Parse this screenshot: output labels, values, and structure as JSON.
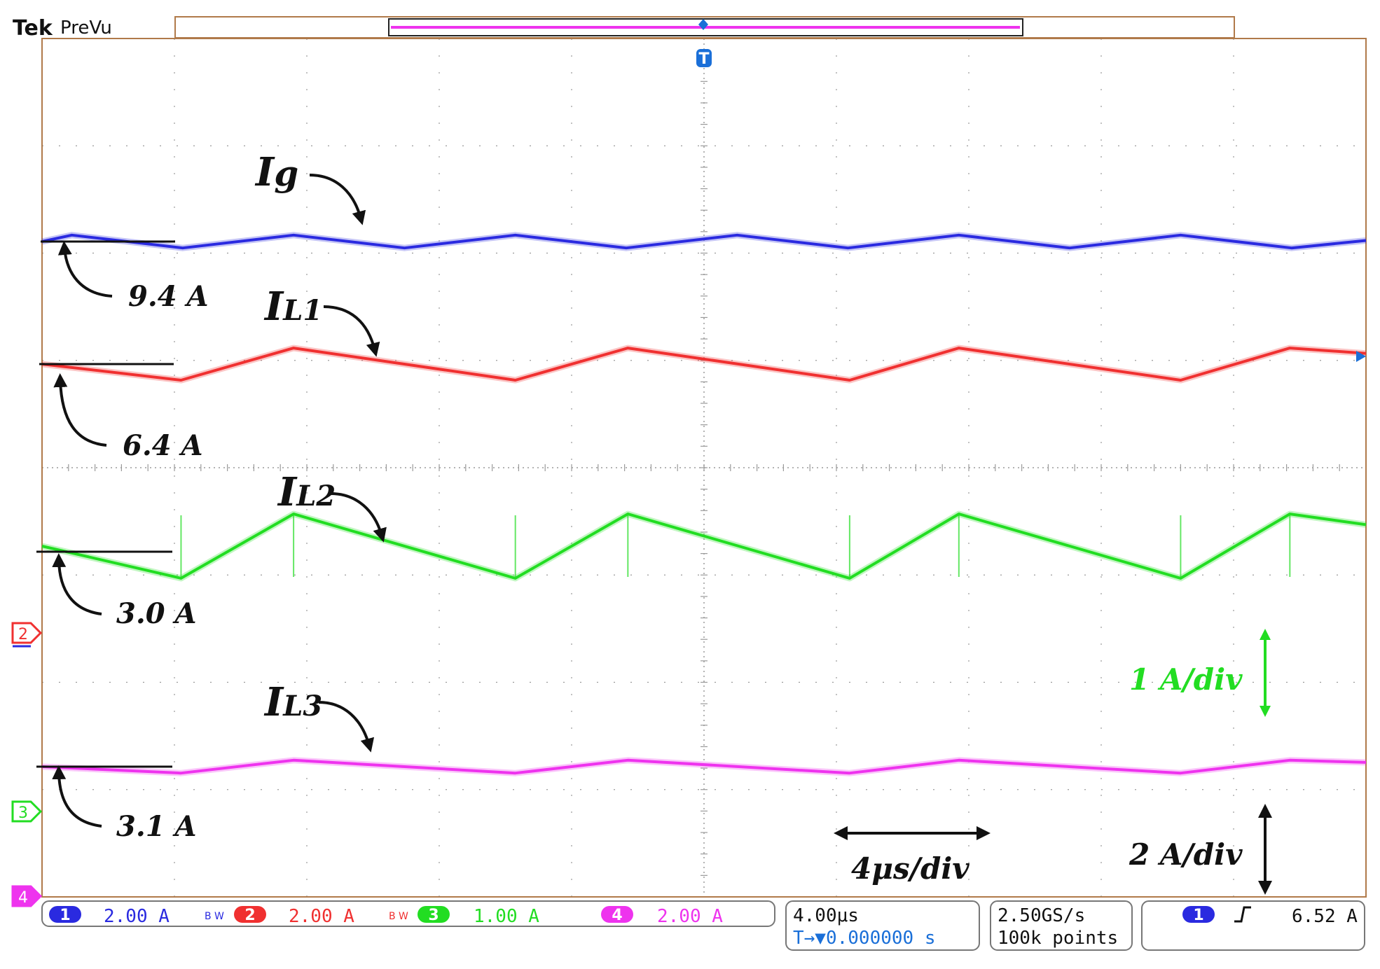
{
  "header": {
    "brand": "Tek",
    "mode": "PreVu"
  },
  "colors": {
    "ch1": "#2a2ae0",
    "ch2": "#f03030",
    "ch3": "#22dd22",
    "ch4": "#ee33ee",
    "grid": "#9a9a9a",
    "frame": "#b07a4a",
    "trigger": "#1a6fd8"
  },
  "chart_data": {
    "type": "line",
    "title": "",
    "x_unit": "us",
    "x_per_div": 4,
    "xlim": [
      -20,
      20
    ],
    "divisions": {
      "x": 10,
      "y": 8
    },
    "trigger_position": 0,
    "series": [
      {
        "name": "Ig",
        "channel": 1,
        "scale_per_div": 2.0,
        "level_label": "9.4 A",
        "mean": 9.4,
        "ripple_pp": 0.25,
        "period_us": 6.67,
        "peak_times_us": [
          -19.1,
          -12.4,
          -5.7,
          1.0,
          7.7,
          14.4
        ],
        "x": [
          -20,
          -19.1,
          -15.75,
          -12.4,
          -9.05,
          -5.7,
          -2.35,
          1.0,
          4.35,
          7.7,
          11.05,
          14.4,
          17.75,
          20
        ],
        "y": [
          9.4,
          9.52,
          9.28,
          9.52,
          9.28,
          9.52,
          9.28,
          9.52,
          9.28,
          9.52,
          9.28,
          9.52,
          9.28,
          9.42
        ]
      },
      {
        "name": "IL1",
        "channel": 2,
        "scale_per_div": 2.0,
        "level_label": "6.4 A",
        "mean": 6.4,
        "ripple_pp": 0.6,
        "period_us": 20,
        "x": [
          -20,
          -15.8,
          -12.4,
          -5.7,
          -2.3,
          4.4,
          7.7,
          14.4,
          17.7,
          20
        ],
        "y": [
          6.4,
          6.1,
          6.7,
          6.1,
          6.7,
          6.1,
          6.7,
          6.1,
          6.7,
          6.6
        ]
      },
      {
        "name": "IL2",
        "channel": 3,
        "scale_per_div": 1.0,
        "level_label": "3.0 A",
        "mean": 3.0,
        "ripple_pp": 0.6,
        "period_us": 20,
        "x": [
          -20,
          -15.8,
          -12.4,
          -5.7,
          -2.3,
          4.4,
          7.7,
          14.4,
          17.7,
          20
        ],
        "y": [
          3.0,
          2.7,
          3.3,
          2.7,
          3.3,
          2.7,
          3.3,
          2.7,
          3.3,
          3.2
        ]
      },
      {
        "name": "IL3",
        "channel": 4,
        "scale_per_div": 2.0,
        "level_label": "3.1 A",
        "mean": 3.1,
        "ripple_pp": 0.25,
        "period_us": 20,
        "x": [
          -20,
          -15.8,
          -12.4,
          -5.7,
          -2.3,
          4.4,
          7.7,
          14.4,
          17.7,
          20
        ],
        "y": [
          3.1,
          2.98,
          3.22,
          2.98,
          3.22,
          2.98,
          3.22,
          2.98,
          3.22,
          3.18
        ]
      }
    ],
    "annotations": {
      "labels": [
        {
          "main": "I",
          "sub": "g"
        },
        {
          "main": "I",
          "sub": "L1"
        },
        {
          "main": "I",
          "sub": "L2"
        },
        {
          "main": "I",
          "sub": "L3"
        }
      ],
      "levels": [
        "9.4 A",
        "6.4 A",
        "3.0 A",
        "3.1 A"
      ],
      "scale_green": "1 A/div",
      "scale_black": "2 A/div",
      "time_scale": "4μs/div"
    },
    "channel_markers": [
      "2",
      "3",
      "4"
    ]
  },
  "status_bar": {
    "channels": [
      {
        "num": "1",
        "scale": "2.00 A",
        "bw": "B W"
      },
      {
        "num": "2",
        "scale": "2.00 A",
        "bw": "B W"
      },
      {
        "num": "3",
        "scale": "1.00 A",
        "bw": ""
      },
      {
        "num": "4",
        "scale": "2.00 A",
        "bw": ""
      }
    ],
    "timebase": "4.00μs",
    "trigger_offset": "T→▼0.000000 s",
    "sample_rate": "2.50GS/s",
    "record_length": "100k points",
    "trigger": {
      "source": "1",
      "slope": "rising-edge-icon",
      "level": "6.52 A"
    }
  }
}
